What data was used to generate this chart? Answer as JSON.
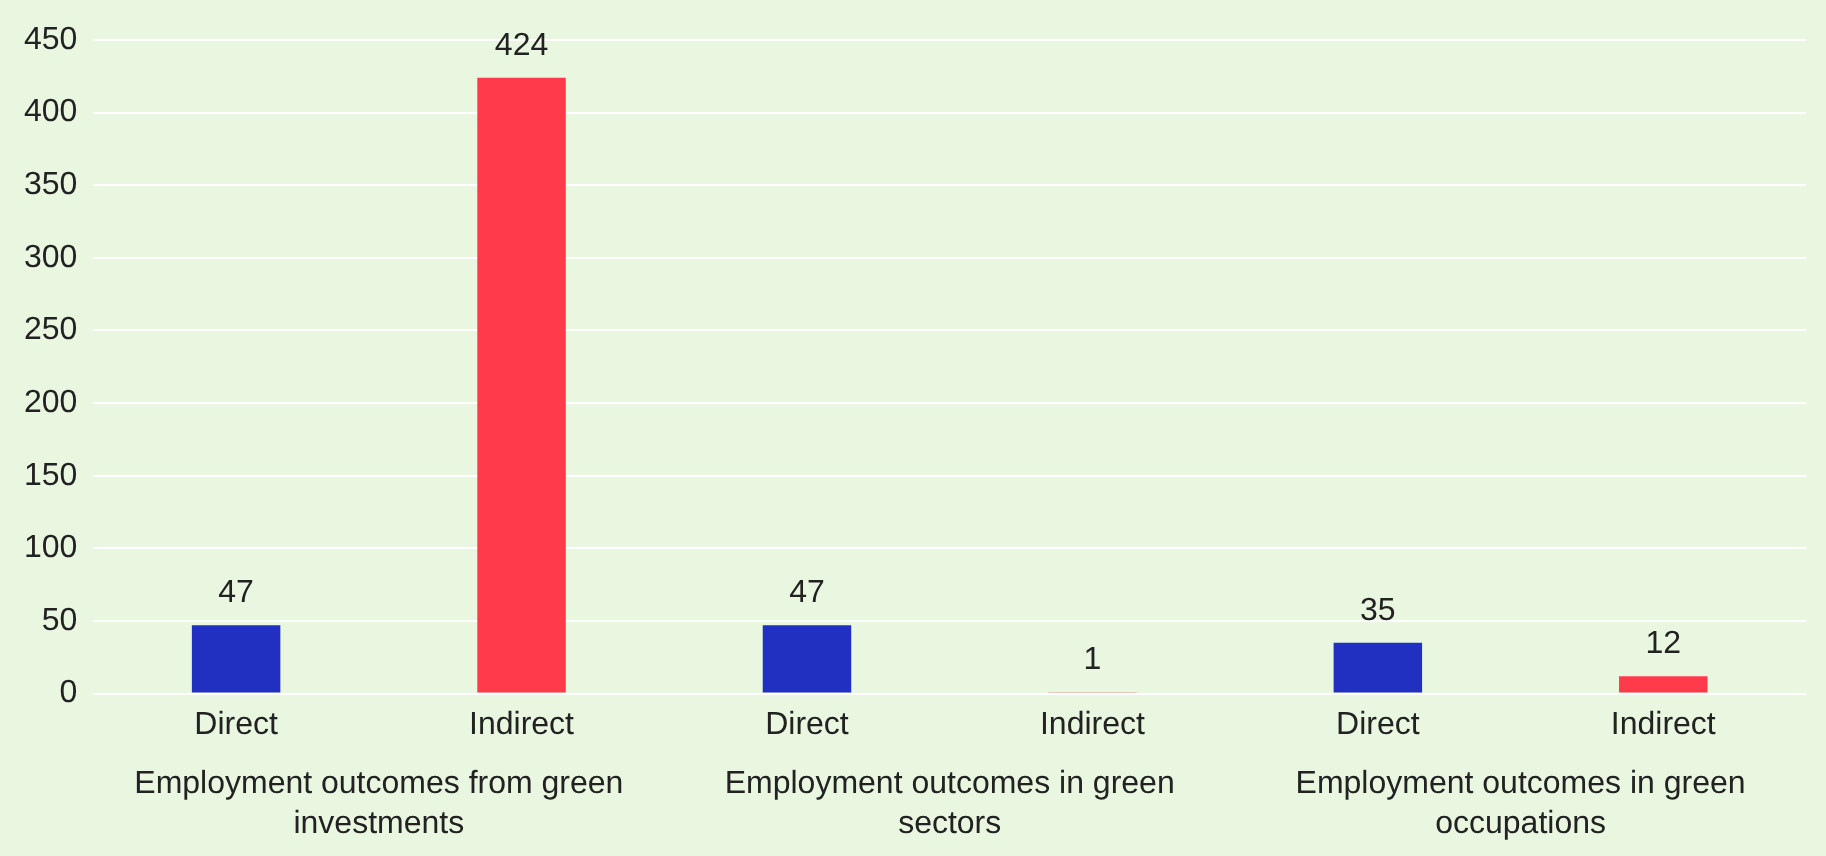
{
  "chart_data": {
    "type": "bar",
    "categories": [
      "Direct",
      "Indirect",
      "Direct",
      "Indirect",
      "Direct",
      "Indirect"
    ],
    "values": [
      47,
      424,
      47,
      1,
      35,
      12
    ],
    "colors": [
      "#2130c0",
      "#ff3b4b",
      "#2130c0",
      "#ff3b4b",
      "#2130c0",
      "#ff3b4b"
    ],
    "ylim": [
      0,
      450
    ],
    "yticks": [
      0,
      50,
      100,
      150,
      200,
      250,
      300,
      350,
      400,
      450
    ],
    "grid": "y",
    "data_labels": true,
    "annotations": [
      "Employment outcomes from green investments",
      "Employment outcomes in green sectors",
      "Employment outcomes in green occupations"
    ]
  }
}
